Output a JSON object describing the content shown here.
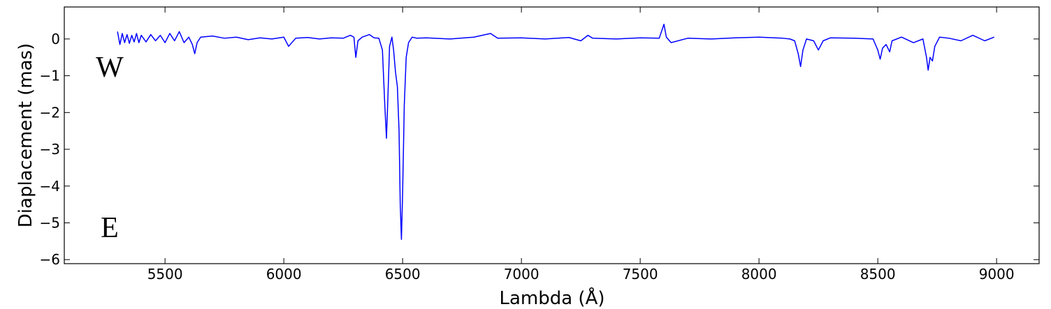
{
  "chart_data": {
    "type": "line",
    "xlabel": "Lambda (Å)",
    "ylabel": "Diaplacement (mas)",
    "annotations": [
      "W",
      "E"
    ],
    "xlim": [
      5076,
      9179
    ],
    "ylim": [
      -6.11,
      0.87
    ],
    "xticks": [
      5500,
      6000,
      6500,
      7000,
      7500,
      8000,
      8500,
      9000
    ],
    "yticks": [
      0,
      {
        "value": -1,
        "label": "−1"
      },
      {
        "value": -2,
        "label": "−2"
      },
      {
        "value": -3,
        "label": "−3"
      },
      {
        "value": -4,
        "label": "−4"
      },
      {
        "value": -5,
        "label": "−5"
      },
      {
        "value": -6,
        "label": "−6"
      }
    ],
    "grid": false,
    "x": [
      5300,
      5310,
      5320,
      5330,
      5340,
      5350,
      5360,
      5370,
      5380,
      5390,
      5400,
      5420,
      5440,
      5460,
      5480,
      5500,
      5520,
      5540,
      5560,
      5580,
      5600,
      5615,
      5625,
      5635,
      5650,
      5700,
      5750,
      5800,
      5850,
      5900,
      5950,
      6000,
      6020,
      6050,
      6100,
      6150,
      6200,
      6250,
      6280,
      6295,
      6303,
      6312,
      6330,
      6360,
      6380,
      6400,
      6415,
      6425,
      6432,
      6438,
      6445,
      6455,
      6462,
      6470,
      6478,
      6485,
      6490,
      6495,
      6500,
      6507,
      6515,
      6525,
      6540,
      6560,
      6600,
      6700,
      6800,
      6870,
      6900,
      7000,
      7100,
      7200,
      7250,
      7280,
      7300,
      7400,
      7500,
      7580,
      7600,
      7610,
      7630,
      7700,
      7800,
      7900,
      8000,
      8100,
      8130,
      8150,
      8165,
      8175,
      8185,
      8200,
      8230,
      8250,
      8270,
      8300,
      8400,
      8480,
      8500,
      8510,
      8520,
      8535,
      8550,
      8560,
      8600,
      8650,
      8690,
      8705,
      8712,
      8720,
      8730,
      8740,
      8760,
      8800,
      8850,
      8900,
      8950,
      8990
    ],
    "series": [
      {
        "color": "#0000ff",
        "values": [
          0.2,
          -0.15,
          0.15,
          -0.1,
          0.12,
          -0.12,
          0.1,
          -0.08,
          0.15,
          -0.1,
          0.1,
          -0.08,
          0.12,
          -0.05,
          0.1,
          -0.1,
          0.15,
          -0.05,
          0.2,
          -0.1,
          0.05,
          -0.15,
          -0.4,
          -0.1,
          0.05,
          0.08,
          0.02,
          0.05,
          -0.02,
          0.03,
          0.0,
          0.05,
          -0.2,
          0.02,
          0.04,
          0.0,
          0.03,
          0.02,
          0.1,
          0.05,
          -0.5,
          -0.05,
          0.05,
          0.12,
          0.03,
          0.02,
          -0.3,
          -1.8,
          -2.7,
          -1.6,
          -0.2,
          0.05,
          -0.3,
          -0.9,
          -1.3,
          -2.5,
          -4.5,
          -5.45,
          -4.2,
          -1.8,
          -0.5,
          -0.1,
          0.05,
          0.02,
          0.03,
          0.0,
          0.05,
          0.15,
          0.02,
          0.03,
          0.0,
          0.04,
          -0.05,
          0.1,
          0.02,
          0.0,
          0.03,
          0.02,
          0.4,
          0.05,
          -0.1,
          0.02,
          0.0,
          0.03,
          0.05,
          0.02,
          0.0,
          -0.05,
          -0.4,
          -0.75,
          -0.3,
          0.0,
          -0.05,
          -0.3,
          -0.05,
          0.03,
          0.02,
          0.0,
          -0.3,
          -0.55,
          -0.25,
          -0.15,
          -0.35,
          -0.05,
          0.05,
          -0.1,
          0.0,
          -0.5,
          -0.85,
          -0.5,
          -0.6,
          -0.2,
          0.05,
          0.02,
          -0.05,
          0.1,
          -0.05,
          0.05
        ]
      }
    ]
  }
}
